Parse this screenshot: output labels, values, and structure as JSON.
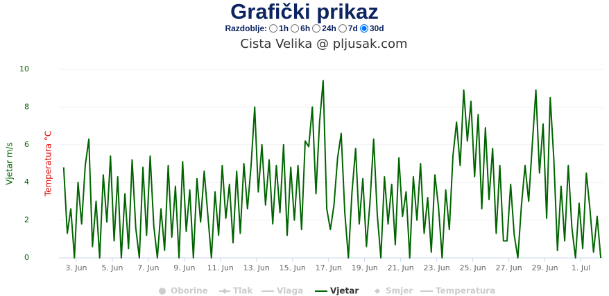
{
  "header": {
    "title": "Grafički prikaz",
    "period_label": "Razdoblje:",
    "period_options": [
      "1h",
      "6h",
      "24h",
      "7d",
      "30d"
    ],
    "period_selected": 4
  },
  "chart_data": {
    "type": "line",
    "title": "Cista Velika @ pljusak.com",
    "y_label": "Vjetar m/s",
    "y2_label": "Temperatura °C",
    "x": [
      2.3,
      2.5,
      2.7,
      2.9,
      3.1,
      3.3,
      3.5,
      3.7,
      3.9,
      4.1,
      4.3,
      4.5,
      4.7,
      4.9,
      5.1,
      5.3,
      5.5,
      5.7,
      5.9,
      6.1,
      6.3,
      6.5,
      6.7,
      6.9,
      7.1,
      7.3,
      7.5,
      7.7,
      7.9,
      8.1,
      8.3,
      8.5,
      8.7,
      8.9,
      9.1,
      9.3,
      9.5,
      9.7,
      9.9,
      10.1,
      10.3,
      10.5,
      10.7,
      10.9,
      11.1,
      11.3,
      11.5,
      11.7,
      11.9,
      12.1,
      12.3,
      12.5,
      12.7,
      12.9,
      13.1,
      13.3,
      13.5,
      13.7,
      13.9,
      14.1,
      14.3,
      14.5,
      14.7,
      14.9,
      15.1,
      15.3,
      15.5,
      15.7,
      15.9,
      16.1,
      16.3,
      16.5,
      16.7,
      16.9,
      17.1,
      17.3,
      17.5,
      17.7,
      17.9,
      18.1,
      18.3,
      18.5,
      18.7,
      18.9,
      19.1,
      19.3,
      19.5,
      19.7,
      19.9,
      20.1,
      20.3,
      20.5,
      20.7,
      20.9,
      21.1,
      21.3,
      21.5,
      21.7,
      21.9,
      22.1,
      22.3,
      22.5,
      22.7,
      22.9,
      23.1,
      23.3,
      23.5,
      23.7,
      23.9,
      24.1,
      24.3,
      24.5,
      24.7,
      24.9,
      25.1,
      25.3,
      25.5,
      25.7,
      25.9,
      26.1,
      26.3,
      26.5,
      26.7,
      26.9,
      27.1,
      27.3,
      27.5,
      27.7,
      27.9,
      28.1,
      28.3,
      28.5,
      28.7,
      28.9,
      29.1,
      29.3,
      29.5,
      29.7,
      29.9,
      30.1,
      30.3,
      30.5,
      30.7,
      30.9,
      31.1,
      31.3,
      31.5,
      31.7,
      31.9,
      32.1
    ],
    "series": [
      {
        "name": "Vjetar",
        "color": "#006400",
        "values": [
          4.8,
          1.3,
          2.6,
          0,
          4.0,
          1.8,
          4.9,
          6.3,
          0.6,
          3.0,
          0,
          4.4,
          1.9,
          5.4,
          0.9,
          4.3,
          0,
          3.4,
          0.5,
          5.2,
          1.6,
          0,
          4.8,
          1.2,
          5.4,
          1.7,
          0,
          2.6,
          0.4,
          4.9,
          1.1,
          3.8,
          0,
          5.1,
          1.4,
          3.6,
          0,
          4.2,
          1.9,
          4.6,
          2.3,
          0,
          3.5,
          1.2,
          4.9,
          2.1,
          3.9,
          0.8,
          4.6,
          1.3,
          5.0,
          2.6,
          4.9,
          8.0,
          3.5,
          6.0,
          2.8,
          5.2,
          1.8,
          4.9,
          2.4,
          6.0,
          1.2,
          4.8,
          2.0,
          4.9,
          1.5,
          6.2,
          5.9,
          8.0,
          3.4,
          7.2,
          9.4,
          2.6,
          1.5,
          2.8,
          5.3,
          6.6,
          2.4,
          0,
          3.5,
          5.8,
          1.8,
          4.2,
          0.6,
          3.0,
          6.3,
          2.3,
          0,
          4.3,
          1.8,
          3.9,
          0.7,
          5.3,
          2.2,
          3.5,
          0,
          4.3,
          2.0,
          5.0,
          1.3,
          3.2,
          0.3,
          4.4,
          2.7,
          0,
          3.6,
          1.5,
          5.4,
          7.2,
          4.9,
          8.9,
          6.2,
          8.3,
          4.3,
          7.6,
          2.6,
          6.9,
          3.1,
          5.8,
          1.3,
          4.9,
          0.9,
          0.9,
          3.9,
          1.2,
          0,
          2.8,
          4.9,
          3.0,
          6.0,
          8.9,
          4.5,
          7.1,
          2.1,
          8.5,
          5.2,
          0.4,
          3.8,
          0.9,
          4.9,
          1.6,
          0,
          2.9,
          0.5,
          4.5,
          2.6,
          0.3,
          2.2,
          0
        ]
      }
    ],
    "legend": [
      {
        "name": "Oborine",
        "visible": false
      },
      {
        "name": "Tlak",
        "visible": false
      },
      {
        "name": "Vlaga",
        "visible": false
      },
      {
        "name": "Vjetar",
        "visible": true
      },
      {
        "name": "Smjer",
        "visible": false
      },
      {
        "name": "Temperatura",
        "visible": false
      }
    ],
    "xlim": [
      2.04,
      32.25
    ],
    "xticks": [
      {
        "value": 3,
        "label": "3. Jun"
      },
      {
        "value": 5,
        "label": "5. Jun"
      },
      {
        "value": 7,
        "label": "7. Jun"
      },
      {
        "value": 9,
        "label": "9. Jun"
      },
      {
        "value": 11,
        "label": "11. Jun"
      },
      {
        "value": 13,
        "label": "13. Jun"
      },
      {
        "value": 15,
        "label": "15. Jun"
      },
      {
        "value": 17,
        "label": "17. Jun"
      },
      {
        "value": 19,
        "label": "19. Jun"
      },
      {
        "value": 21,
        "label": "21. Jun"
      },
      {
        "value": 23,
        "label": "23. Jun"
      },
      {
        "value": 25,
        "label": "25. Jun"
      },
      {
        "value": 27,
        "label": "27. Jun"
      },
      {
        "value": 29,
        "label": "29. Jun"
      },
      {
        "value": 31,
        "label": "1. Jul"
      }
    ],
    "ylim": [
      0,
      10
    ],
    "yticks": [
      0,
      2,
      4,
      6,
      8,
      10
    ],
    "grid": true
  }
}
